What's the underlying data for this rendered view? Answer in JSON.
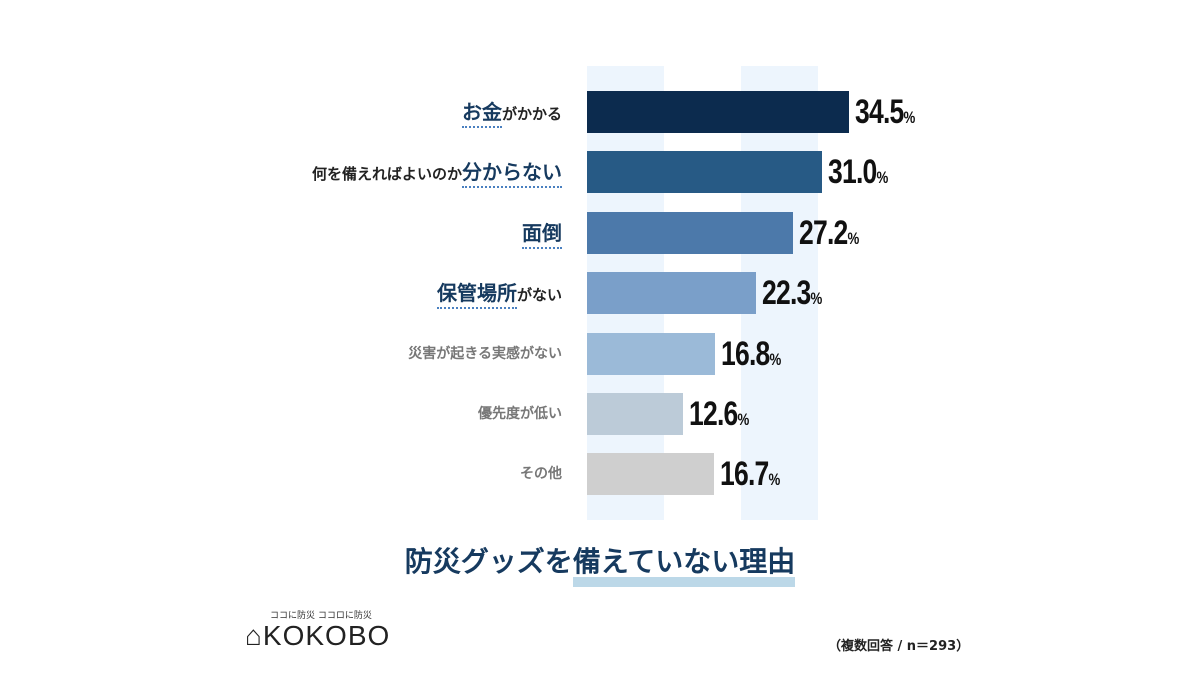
{
  "chart_data": {
    "type": "bar",
    "orientation": "horizontal",
    "title": "防災グッズを備えていない理由",
    "categories": [
      "お金がかかる",
      "何を備えればよいのか分からない",
      "面倒",
      "保管場所がない",
      "災害が起きる実感がない",
      "優先度が低い",
      "その他"
    ],
    "label_parts": [
      [
        "",
        "お金",
        "がかかる"
      ],
      [
        "何を備えればよいのか",
        "分からない",
        ""
      ],
      [
        "",
        "面倒",
        ""
      ],
      [
        "",
        "保管場所",
        "がない"
      ],
      [
        "災害が起きる実感がない",
        "",
        ""
      ],
      [
        "優先度が低い",
        "",
        ""
      ],
      [
        "その他",
        "",
        ""
      ]
    ],
    "values": [
      34.5,
      31.0,
      27.2,
      22.3,
      16.8,
      12.6,
      16.7
    ],
    "value_labels": [
      "34.5",
      "31.0",
      "27.2",
      "22.3",
      "16.8",
      "12.6",
      "16.7"
    ],
    "unit": "%",
    "colors": [
      "#0c2b4e",
      "#275a85",
      "#4c79aa",
      "#7a9fc9",
      "#9bbad8",
      "#bccbd8",
      "#cfcfcf"
    ],
    "label_style": [
      "dark",
      "dark",
      "dark",
      "dark",
      "gray",
      "gray",
      "gray"
    ],
    "xlim": [
      0,
      40
    ]
  },
  "title": {
    "part1": "防災グッズを",
    "part2": "備えていない理由"
  },
  "logo": {
    "tagline": "ココに防災 ココロに防災",
    "name": "KOKOBO"
  },
  "note": "（複数回答 / n＝293）"
}
